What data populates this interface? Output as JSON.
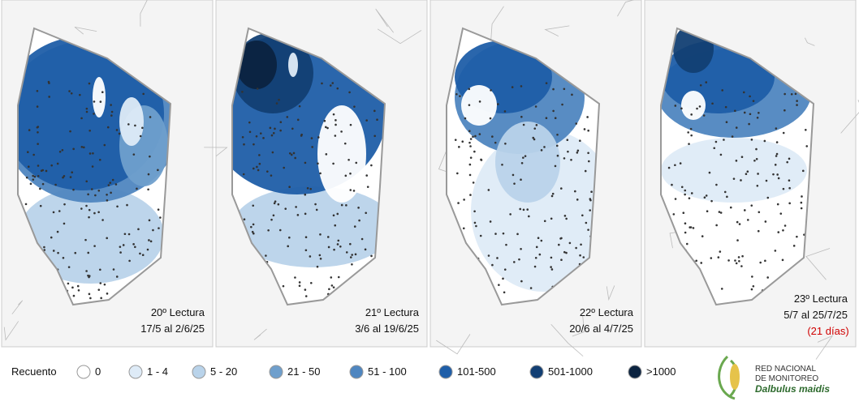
{
  "panels": [
    {
      "title": "20º Lectura",
      "dates": "17/5 al 2/6/25"
    },
    {
      "title": "21º Lectura",
      "dates": "3/6 al 19/6/25"
    },
    {
      "title": "22º Lectura",
      "dates": "20/6 al 4/7/25"
    },
    {
      "title": "23º Lectura",
      "dates": "5/7 al 25/7/25",
      "note": "(21 días)"
    }
  ],
  "legend": {
    "title": "Recuento",
    "items": [
      {
        "label": "0",
        "color": "#ffffff"
      },
      {
        "label": "1 - 4",
        "color": "#deebf7"
      },
      {
        "label": "5 - 20",
        "color": "#b9d3ea"
      },
      {
        "label": "21 - 50",
        "color": "#6f9fcc"
      },
      {
        "label": "51 - 100",
        "color": "#4f86c0"
      },
      {
        "label": "101-500",
        "color": "#1f5ea8"
      },
      {
        "label": "501-1000",
        "color": "#123f73"
      },
      {
        "label": ">1000",
        "color": "#0b2340"
      }
    ]
  },
  "logo": {
    "line1": "RED NACIONAL",
    "line2": "DE MONITOREO",
    "line3": "Dalbulus maidis"
  }
}
